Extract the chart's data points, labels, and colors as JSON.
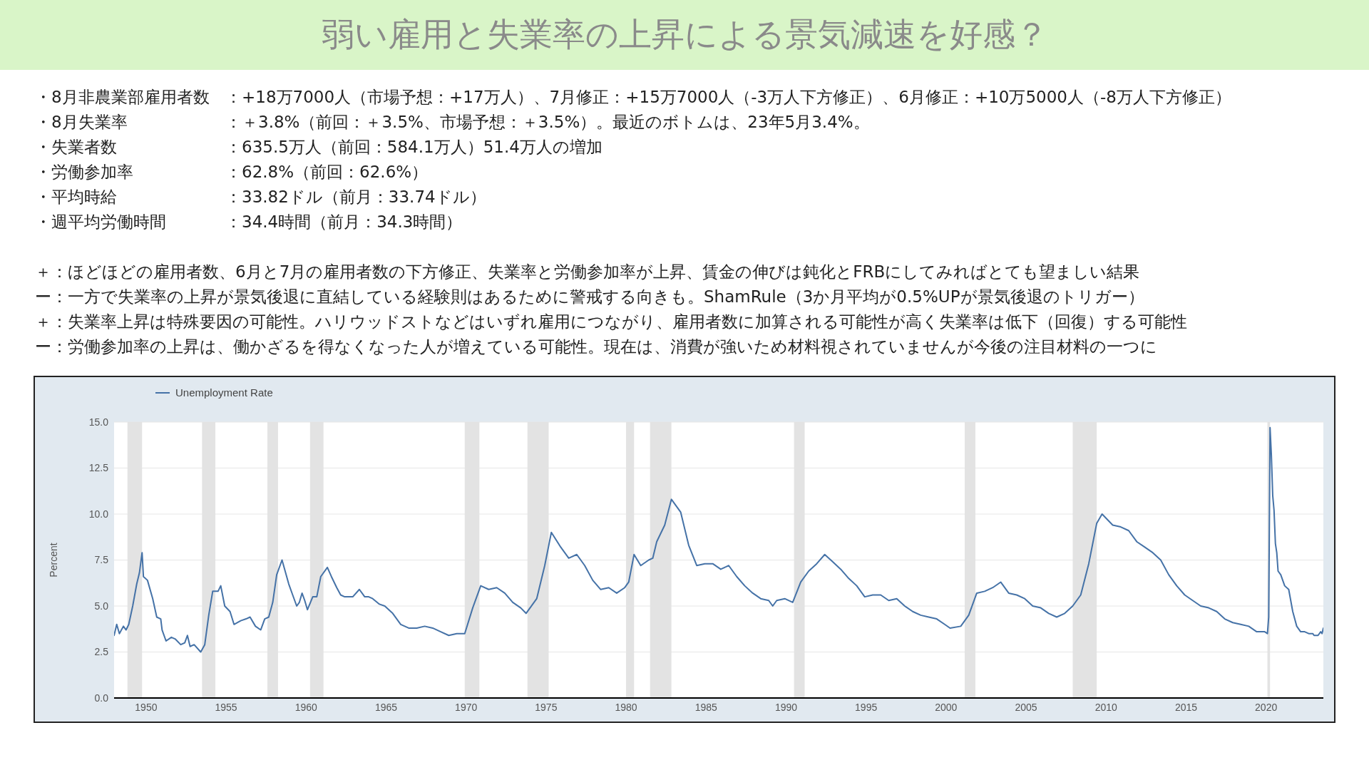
{
  "chart_data": {
    "type": "line",
    "title": "弱い雇用と失業率の上昇による景気減速を好感？",
    "ylabel": "Percent",
    "annotations": [
      "・8月非農業部雇用者数：+18万7000人（市場予想：+17万人）、7月修正：+15万7000人（-3万人下方修正）、6月修正：+10万5000人（-8万人下方修正）",
      "・8月失業率：＋3.8%（前回：＋3.5%、市場予想：＋3.5%）。最近のボトムは、23年5月3.4%。",
      "・失業者数：635.5万人（前回：584.1万人）51.4万人の増加",
      "・労働参加率：62.8%（前回：62.6%）",
      "・平均時給：33.82ドル（前月：33.74ドル）",
      "・週平均労働時間：34.4時間（前月：34.3時間）",
      "＋：ほどほどの雇用者数、6月と7月の雇用者数の下方修正、失業率と労働参加率が上昇、賃金の伸びは鈍化とFRBにしてみればとても望ましい結果",
      "ー：一方で失業率の上昇が景気後退に直結している経験則はあるために警戒する向きも。ShamRule（3か月平均が0.5%UPが景気後退のトリガー）",
      "＋：失業率上昇は特殊要因の可能性。ハリウッドストなどはいずれ雇用につながり、雇用者数に加算される可能性が高く失業率は低下（回復）する可能性",
      "ー：労働参加率の上昇は、働かざるを得なくなった人が増えている可能性。現在は、消費が強いため材料視されていませんが今後の注目材料の一つに"
    ],
    "x": [
      "1948-01",
      "1948-03",
      "1948-05",
      "1948-08",
      "1948-10",
      "1948-12",
      "1949-03",
      "1949-06",
      "1949-08",
      "1949-10",
      "1949-11",
      "1950-02",
      "1950-06",
      "1950-09",
      "1950-12",
      "1951-01",
      "1951-04",
      "1951-08",
      "1951-11",
      "1952-03",
      "1952-06",
      "1952-08",
      "1952-10",
      "1953-01",
      "1953-06",
      "1953-09",
      "1953-12",
      "1954-03",
      "1954-07",
      "1954-09",
      "1954-12",
      "1955-04",
      "1955-07",
      "1955-12",
      "1956-04",
      "1956-07",
      "1956-11",
      "1957-03",
      "1957-06",
      "1957-09",
      "1957-12",
      "1958-03",
      "1958-07",
      "1958-12",
      "1959-03",
      "1959-06",
      "1959-08",
      "1959-10",
      "1959-12",
      "1960-02",
      "1960-06",
      "1960-09",
      "1960-12",
      "1961-05",
      "1961-08",
      "1961-12",
      "1962-03",
      "1962-06",
      "1962-12",
      "1963-05",
      "1963-09",
      "1963-12",
      "1964-03",
      "1964-08",
      "1964-12",
      "1965-06",
      "1965-12",
      "1966-06",
      "1966-12",
      "1967-06",
      "1967-12",
      "1968-06",
      "1968-12",
      "1969-06",
      "1969-12",
      "1970-06",
      "1970-12",
      "1971-06",
      "1971-12",
      "1972-06",
      "1972-12",
      "1973-06",
      "1973-10",
      "1974-06",
      "1974-12",
      "1975-05",
      "1975-12",
      "1976-06",
      "1976-12",
      "1977-06",
      "1977-12",
      "1978-06",
      "1978-12",
      "1979-06",
      "1979-12",
      "1980-03",
      "1980-07",
      "1980-12",
      "1981-06",
      "1981-09",
      "1981-12",
      "1982-06",
      "1982-11",
      "1983-06",
      "1983-12",
      "1984-06",
      "1984-12",
      "1985-06",
      "1985-12",
      "1986-06",
      "1986-12",
      "1987-06",
      "1987-12",
      "1988-06",
      "1988-12",
      "1989-03",
      "1989-06",
      "1989-12",
      "1990-06",
      "1990-12",
      "1991-06",
      "1991-12",
      "1992-06",
      "1992-12",
      "1993-06",
      "1993-12",
      "1994-06",
      "1994-12",
      "1995-06",
      "1995-12",
      "1996-06",
      "1996-12",
      "1997-06",
      "1997-12",
      "1998-06",
      "1998-12",
      "1999-06",
      "1999-12",
      "2000-04",
      "2000-12",
      "2001-06",
      "2001-12",
      "2002-06",
      "2002-12",
      "2003-06",
      "2003-12",
      "2004-06",
      "2004-12",
      "2005-06",
      "2005-12",
      "2006-06",
      "2006-12",
      "2007-06",
      "2007-12",
      "2008-06",
      "2008-12",
      "2009-06",
      "2009-10",
      "2010-06",
      "2010-12",
      "2011-06",
      "2011-12",
      "2012-06",
      "2012-12",
      "2013-06",
      "2013-12",
      "2014-06",
      "2014-12",
      "2015-06",
      "2015-12",
      "2016-06",
      "2016-12",
      "2017-06",
      "2017-12",
      "2018-06",
      "2018-12",
      "2019-06",
      "2019-12",
      "2020-02",
      "2020-03",
      "2020-04",
      "2020-05",
      "2020-06",
      "2020-07",
      "2020-08",
      "2020-09",
      "2020-10",
      "2020-12",
      "2021-03",
      "2021-06",
      "2021-09",
      "2021-12",
      "2022-03",
      "2022-06",
      "2022-09",
      "2022-12",
      "2023-01",
      "2023-04",
      "2023-06",
      "2023-07",
      "2023-08"
    ],
    "series": [
      {
        "name": "Unemployment Rate",
        "color": "#4572a7",
        "values": [
          3.4,
          4.0,
          3.5,
          3.9,
          3.7,
          4.0,
          5.0,
          6.2,
          6.8,
          7.9,
          6.6,
          6.4,
          5.4,
          4.4,
          4.3,
          3.7,
          3.1,
          3.3,
          3.2,
          2.9,
          3.0,
          3.4,
          2.8,
          2.9,
          2.5,
          2.9,
          4.5,
          5.8,
          5.8,
          6.1,
          5.0,
          4.7,
          4.0,
          4.2,
          4.3,
          4.4,
          3.9,
          3.7,
          4.3,
          4.4,
          5.2,
          6.7,
          7.5,
          6.2,
          5.6,
          5.0,
          5.2,
          5.7,
          5.3,
          4.8,
          5.5,
          5.5,
          6.6,
          7.1,
          6.6,
          6.0,
          5.6,
          5.5,
          5.5,
          5.9,
          5.5,
          5.5,
          5.4,
          5.1,
          5.0,
          4.6,
          4.0,
          3.8,
          3.8,
          3.9,
          3.8,
          3.6,
          3.4,
          3.5,
          3.5,
          4.9,
          6.1,
          5.9,
          6.0,
          5.7,
          5.2,
          4.9,
          4.6,
          5.4,
          7.2,
          9.0,
          8.2,
          7.6,
          7.8,
          7.2,
          6.4,
          5.9,
          6.0,
          5.7,
          6.0,
          6.3,
          7.8,
          7.2,
          7.5,
          7.6,
          8.5,
          9.4,
          10.8,
          10.1,
          8.3,
          7.2,
          7.3,
          7.3,
          7.0,
          7.2,
          6.6,
          6.1,
          5.7,
          5.4,
          5.3,
          5.0,
          5.3,
          5.4,
          5.2,
          6.3,
          6.9,
          7.3,
          7.8,
          7.4,
          7.0,
          6.5,
          6.1,
          5.5,
          5.6,
          5.6,
          5.3,
          5.4,
          5.0,
          4.7,
          4.5,
          4.4,
          4.3,
          4.0,
          3.8,
          3.9,
          4.5,
          5.7,
          5.8,
          6.0,
          6.3,
          5.7,
          5.6,
          5.4,
          5.0,
          4.9,
          4.6,
          4.4,
          4.6,
          5.0,
          5.6,
          7.3,
          9.5,
          10.0,
          9.4,
          9.3,
          9.1,
          8.5,
          8.2,
          7.9,
          7.5,
          6.7,
          6.1,
          5.6,
          5.3,
          5.0,
          4.9,
          4.7,
          4.3,
          4.1,
          4.0,
          3.9,
          3.6,
          3.6,
          3.5,
          4.4,
          14.7,
          13.2,
          11.0,
          10.2,
          8.4,
          7.9,
          6.9,
          6.7,
          6.1,
          5.9,
          4.7,
          3.9,
          3.6,
          3.6,
          3.5,
          3.5,
          3.4,
          3.4,
          3.6,
          3.5,
          3.8
        ]
      }
    ],
    "xlim": [
      "1948-01",
      "2023-08"
    ],
    "xticks": [
      "1950",
      "1955",
      "1960",
      "1965",
      "1970",
      "1975",
      "1980",
      "1985",
      "1990",
      "1995",
      "2000",
      "2005",
      "2010",
      "2015",
      "2020"
    ],
    "ylim": [
      0,
      15
    ],
    "yticks": [
      {
        "value": 0,
        "label": "0.0"
      },
      2.5,
      {
        "value": 5,
        "label": "5.0"
      },
      7.5,
      {
        "value": 10,
        "label": "10.0"
      },
      12.5,
      {
        "value": 15,
        "label": "15.0"
      }
    ],
    "grid": "y",
    "legend": "top left",
    "bands": [
      {
        "axis": "x",
        "from": "1948-11",
        "to": "1949-10",
        "color": "#e3e3e3"
      },
      {
        "axis": "x",
        "from": "1953-07",
        "to": "1954-05",
        "color": "#e3e3e3"
      },
      {
        "axis": "x",
        "from": "1957-08",
        "to": "1958-04",
        "color": "#e3e3e3"
      },
      {
        "axis": "x",
        "from": "1960-04",
        "to": "1961-02",
        "color": "#e3e3e3"
      },
      {
        "axis": "x",
        "from": "1969-12",
        "to": "1970-11",
        "color": "#e3e3e3"
      },
      {
        "axis": "x",
        "from": "1973-11",
        "to": "1975-03",
        "color": "#e3e3e3"
      },
      {
        "axis": "x",
        "from": "1980-01",
        "to": "1980-07",
        "color": "#e3e3e3"
      },
      {
        "axis": "x",
        "from": "1981-07",
        "to": "1982-11",
        "color": "#e3e3e3"
      },
      {
        "axis": "x",
        "from": "1990-07",
        "to": "1991-03",
        "color": "#e3e3e3"
      },
      {
        "axis": "x",
        "from": "2001-03",
        "to": "2001-11",
        "color": "#e3e3e3"
      },
      {
        "axis": "x",
        "from": "2007-12",
        "to": "2009-06",
        "color": "#e3e3e3"
      },
      {
        "axis": "x",
        "from": "2020-02",
        "to": "2020-04",
        "color": "#e3e3e3"
      }
    ]
  }
}
